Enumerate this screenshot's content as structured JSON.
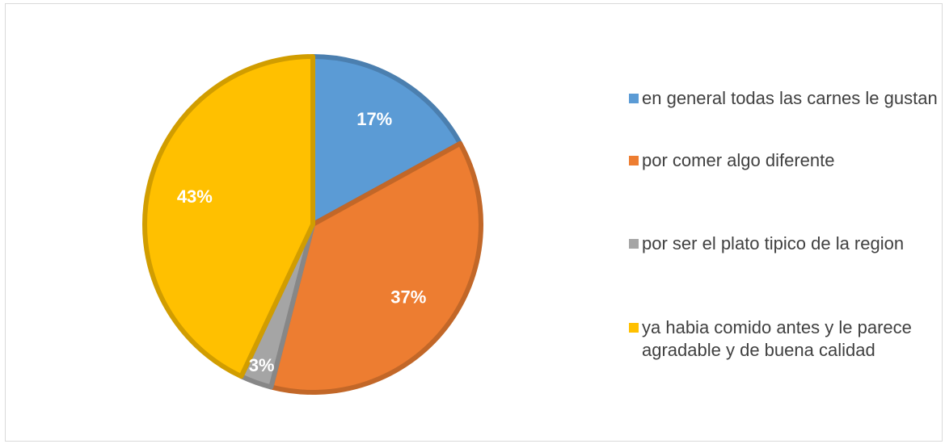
{
  "chart_data": {
    "type": "pie",
    "categories": [
      "en general todas las carnes le gustan",
      "por comer algo diferente",
      "por ser el plato tipico de la region",
      "ya habia comido antes y le parece agradable y de buena calidad"
    ],
    "values": [
      17,
      37,
      3,
      43
    ],
    "value_labels": [
      "17%",
      "37%",
      "3%",
      "43%"
    ],
    "colors": [
      "#5b9bd5",
      "#ed7d31",
      "#a5a5a5",
      "#ffc000"
    ],
    "legend": "right"
  }
}
